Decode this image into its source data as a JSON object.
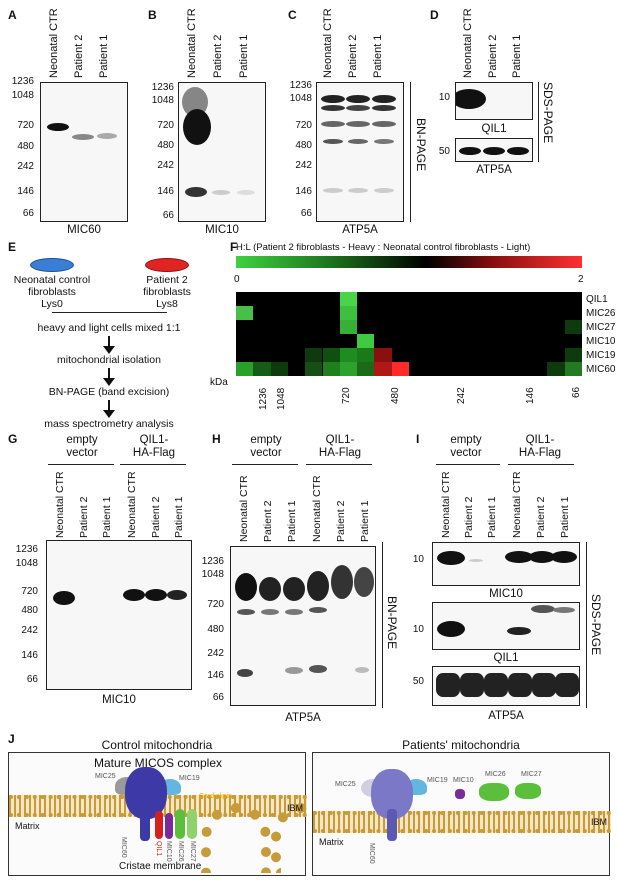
{
  "panel_letters": {
    "A": "A",
    "B": "B",
    "C": "C",
    "D": "D",
    "E": "E",
    "F": "F",
    "G": "G",
    "H": "H",
    "I": "I",
    "J": "J"
  },
  "lanes3": [
    "Neonatal CTR",
    "Patient 2",
    "Patient 1"
  ],
  "mw_bn": [
    "1236",
    "1048",
    "720",
    "480",
    "242",
    "146",
    "66"
  ],
  "captions": {
    "A": "MIC60",
    "B": "MIC10",
    "C": "ATP5A",
    "D_top": "QIL1",
    "D_bottom": "ATP5A",
    "G": "MIC10",
    "H": "ATP5A",
    "I_top": "MIC10",
    "I_mid": "QIL1",
    "I_bottom": "ATP5A"
  },
  "side_labels": {
    "bn": "BN-PAGE",
    "sds": "SDS-PAGE"
  },
  "sds_mw": {
    "d_top": "10",
    "d_bottom": "50",
    "i_top": "10",
    "i_mid": "10",
    "i_bottom": "50"
  },
  "workflow": {
    "left_dish": "Neonatal control\nfibroblasts\nLys0",
    "right_dish": "Patient 2\nfibroblasts\nLys8",
    "steps": [
      "heavy and light cells mixed 1:1",
      "mitochondrial isolation",
      "BN-PAGE (band excision)",
      "mass spectrometry analysis"
    ],
    "left_color": "#3a7fd5",
    "right_color": "#e02424"
  },
  "heatmap": {
    "title": "H:L (Patient 2 fibroblasts - Heavy : Neonatal control fibroblasts - Light)",
    "scale_min": "0",
    "scale_max": "2",
    "rows": [
      "QIL1",
      "MIC26",
      "MIC27",
      "MIC10",
      "MIC19",
      "MIC60"
    ],
    "xlabel": "kDa",
    "ticks": [
      "1236",
      "1048",
      "720",
      "480",
      "242",
      "146",
      "66"
    ]
  },
  "groups": {
    "empty": "empty\nvector",
    "qil1": "QIL1-\nHA-Flag"
  },
  "lanes6": [
    "Neonatal CTR",
    "Patient 2",
    "Patient 1",
    "Neonatal CTR",
    "Patient 2",
    "Patient 1"
  ],
  "schematic": {
    "left_title": "Control mitochondria",
    "left_subtitle": "Mature MICOS complex",
    "right_title": "Patients' mitochondria",
    "labels_left": {
      "mic25": "MIC25",
      "mic19": "MIC19",
      "cardiolipin": "Cardiolipin",
      "ibm": "IBM",
      "matrix": "Matrix",
      "cristae": "Cristae membrane",
      "mic60": "MIC60",
      "qil1": "QIL1",
      "mic10": "MIC10",
      "mic26": "MIC26",
      "mic27": "MIC27"
    },
    "labels_right": {
      "mic25": "MIC25",
      "mic19": "MIC19",
      "mic10": "MIC10",
      "mic26": "MIC26",
      "mic27": "MIC27",
      "ibm": "IBM",
      "matrix": "Matrix",
      "mic60": "MIC60"
    },
    "colors": {
      "mic60": "#3d3aa8",
      "qil1": "#d62020",
      "mic10": "#7a2b9a",
      "mic26": "#5cbf3c",
      "mic27": "#8fd16b",
      "mic19": "#63b6e0",
      "mic25": "#9a9a9a",
      "cardiolipin": "#f2a900"
    }
  }
}
